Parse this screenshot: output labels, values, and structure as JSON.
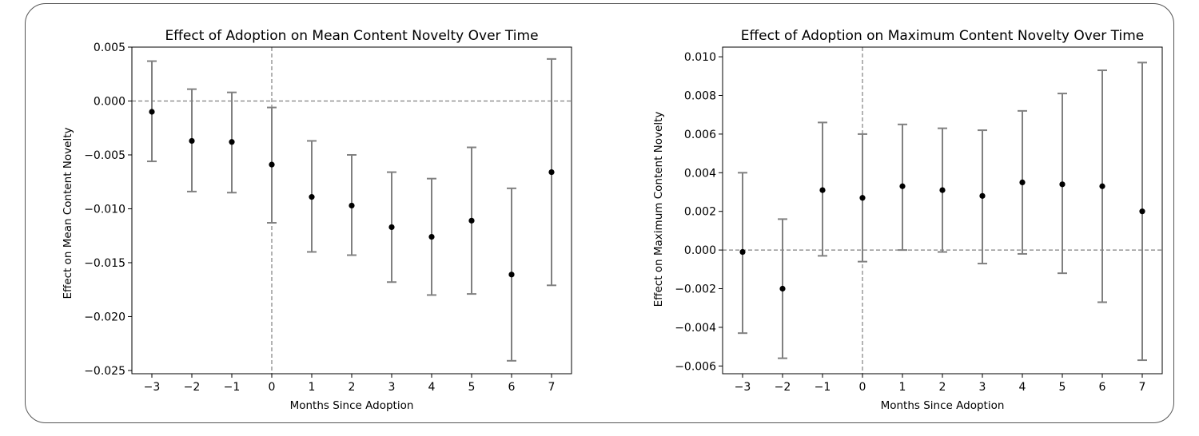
{
  "chart_data": [
    {
      "type": "scatter",
      "title": "Effect of Adoption on Mean Content Novelty Over Time",
      "xlabel": "Months Since Adoption",
      "ylabel": "Effect on Mean Content Novelty",
      "xlim": [
        -3.5,
        7.5
      ],
      "ylim": [
        -0.0253,
        0.005
      ],
      "xticks": [
        -3,
        -2,
        -1,
        0,
        1,
        2,
        3,
        4,
        5,
        6,
        7
      ],
      "xtick_labels": [
        "−3",
        "−2",
        "−1",
        "0",
        "1",
        "2",
        "3",
        "4",
        "5",
        "6",
        "7"
      ],
      "yticks": [
        0.005,
        0.0,
        -0.005,
        -0.01,
        -0.015,
        -0.02,
        -0.025
      ],
      "ytick_labels": [
        "0.005",
        "0.000",
        "−0.005",
        "−0.010",
        "−0.015",
        "−0.020",
        "−0.025"
      ],
      "reference_lines": {
        "y": 0,
        "x": 0,
        "style": "dashed"
      },
      "grid": false,
      "legend": "none",
      "x": [
        -3,
        -2,
        -1,
        0,
        1,
        2,
        3,
        4,
        5,
        6,
        7
      ],
      "y": [
        -0.001,
        -0.0037,
        -0.0038,
        -0.0059,
        -0.0089,
        -0.0097,
        -0.0117,
        -0.0126,
        -0.0111,
        -0.0161,
        -0.0066
      ],
      "ci_lower": [
        -0.0056,
        -0.0084,
        -0.0085,
        -0.0113,
        -0.014,
        -0.0143,
        -0.0168,
        -0.018,
        -0.0179,
        -0.0241,
        -0.0171
      ],
      "ci_upper": [
        0.0037,
        0.0011,
        0.0008,
        -0.0006,
        -0.0037,
        -0.005,
        -0.0066,
        -0.0072,
        -0.0043,
        -0.0081,
        0.0039
      ],
      "point_color": "#000000",
      "errorbar_color": "#808080"
    },
    {
      "type": "scatter",
      "title": "Effect of Adoption on Maximum Content Novelty Over Time",
      "xlabel": "Months Since Adoption",
      "ylabel": "Effect on Maximum Content Novelty",
      "xlim": [
        -3.5,
        7.5
      ],
      "ylim": [
        -0.0064,
        0.0105
      ],
      "xticks": [
        -3,
        -2,
        -1,
        0,
        1,
        2,
        3,
        4,
        5,
        6,
        7
      ],
      "xtick_labels": [
        "−3",
        "−2",
        "−1",
        "0",
        "1",
        "2",
        "3",
        "4",
        "5",
        "6",
        "7"
      ],
      "yticks": [
        0.01,
        0.008,
        0.006,
        0.004,
        0.002,
        0.0,
        -0.002,
        -0.004,
        -0.006
      ],
      "ytick_labels": [
        "0.010",
        "0.008",
        "0.006",
        "0.004",
        "0.002",
        "0.000",
        "−0.002",
        "−0.004",
        "−0.006"
      ],
      "reference_lines": {
        "y": 0,
        "x": 0,
        "style": "dashed"
      },
      "grid": false,
      "legend": "none",
      "x": [
        -3,
        -2,
        -1,
        0,
        1,
        2,
        3,
        4,
        5,
        6,
        7
      ],
      "y": [
        -0.0001,
        -0.002,
        0.0031,
        0.0027,
        0.0033,
        0.0031,
        0.0028,
        0.0035,
        0.0034,
        0.0033,
        0.002
      ],
      "ci_lower": [
        -0.0043,
        -0.0056,
        -0.0003,
        -0.0006,
        0.0,
        -0.0001,
        -0.0007,
        -0.0002,
        -0.0012,
        -0.0027,
        -0.0057
      ],
      "ci_upper": [
        0.004,
        0.0016,
        0.0066,
        0.006,
        0.0065,
        0.0063,
        0.0062,
        0.0072,
        0.0081,
        0.0093,
        0.0097
      ],
      "point_color": "#000000",
      "errorbar_color": "#808080"
    }
  ]
}
